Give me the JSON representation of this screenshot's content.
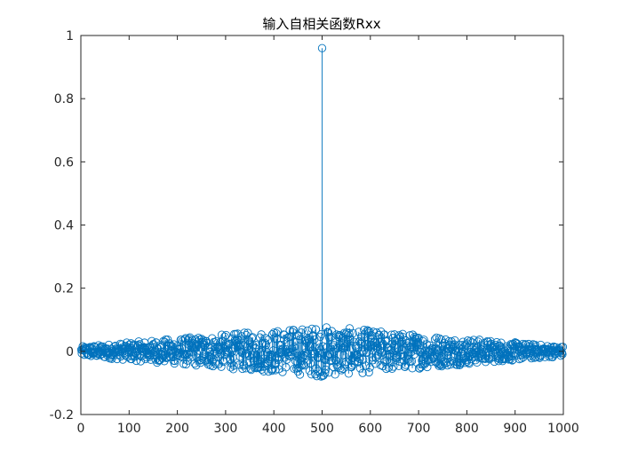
{
  "chart_data": {
    "type": "stem",
    "title": "输入自相关函数Rxx",
    "xlabel": "",
    "ylabel": "",
    "xlim": [
      0,
      1000
    ],
    "ylim": [
      -0.2,
      1
    ],
    "x_ticks": [
      0,
      100,
      200,
      300,
      400,
      500,
      600,
      700,
      800,
      900,
      1000
    ],
    "y_ticks": [
      -0.2,
      0,
      0.2,
      0.4,
      0.6,
      0.8,
      1
    ],
    "x_tick_labels": [
      "0",
      "100",
      "200",
      "300",
      "400",
      "500",
      "600",
      "700",
      "800",
      "900",
      "1000"
    ],
    "y_tick_labels": [
      "-0.2",
      "0",
      "0.2",
      "0.4",
      "0.6",
      "0.8",
      "1"
    ],
    "grid": false,
    "box": true,
    "marker": "circle-open",
    "series_color": "#0072bd",
    "series": [
      {
        "x_start": 1,
        "x_end": 999,
        "peak": {
          "x": 500,
          "y": 0.96
        },
        "sidelobe_amplitude_range": [
          -0.1,
          0.08
        ],
        "sidelobe_envelope": "triangular, largest near center, tapering to ~0.01 at ends"
      }
    ]
  }
}
